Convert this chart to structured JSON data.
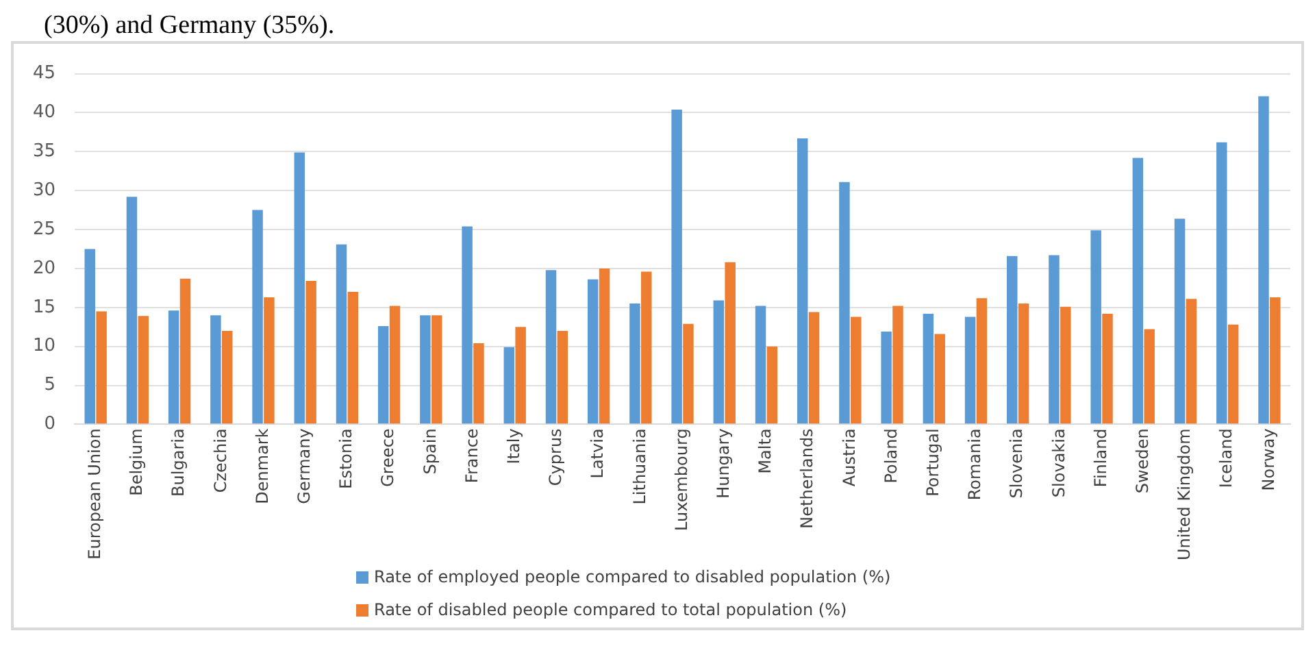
{
  "chart_data": {
    "type": "bar",
    "annotations": [
      "(30%) and Germany (35%)."
    ],
    "categories": [
      "European Union",
      "Belgium",
      "Bulgaria",
      "Czechia",
      "Denmark",
      "Germany",
      "Estonia",
      "Greece",
      "Spain",
      "France",
      "Italy",
      "Cyprus",
      "Latvia",
      "Lithuania",
      "Luxembourg",
      "Hungary",
      "Malta",
      "Netherlands",
      "Austria",
      "Poland",
      "Portugal",
      "Romania",
      "Slovenia",
      "Slovakia",
      "Finland",
      "Sweden",
      "United Kingdom",
      "Iceland",
      "Norway"
    ],
    "series": [
      {
        "name": "Rate of employed people compared to disabled population (%)",
        "color": "#5b9bd5",
        "values": [
          22.5,
          29.2,
          14.6,
          14.0,
          27.5,
          34.9,
          23.1,
          12.6,
          14.0,
          25.4,
          9.9,
          19.8,
          18.6,
          15.5,
          40.4,
          15.9,
          15.2,
          36.7,
          31.1,
          11.9,
          14.2,
          13.8,
          21.6,
          21.7,
          24.9,
          34.2,
          26.4,
          36.2,
          42.1
        ]
      },
      {
        "name": "Rate of disabled people compared to total population (%)",
        "color": "#ed7d31",
        "values": [
          14.5,
          13.9,
          18.7,
          12.0,
          16.3,
          18.4,
          17.0,
          15.2,
          14.0,
          10.4,
          12.5,
          12.0,
          20.0,
          19.6,
          12.9,
          20.8,
          10.0,
          14.4,
          13.8,
          15.2,
          11.6,
          16.2,
          15.5,
          15.1,
          14.2,
          12.2,
          16.1,
          12.8,
          16.3
        ]
      }
    ],
    "ylim": [
      0,
      45
    ],
    "yticks": [
      0,
      5,
      10,
      15,
      20,
      25,
      30,
      35,
      40,
      45
    ],
    "grid": "y",
    "legend": "bottom"
  }
}
